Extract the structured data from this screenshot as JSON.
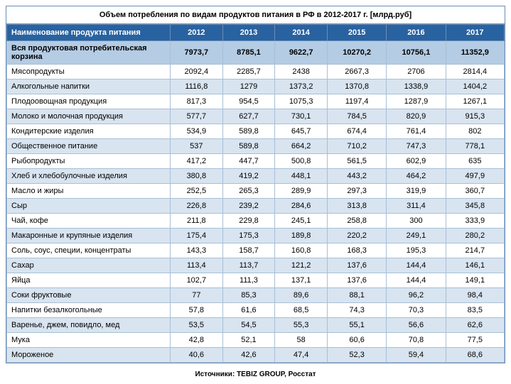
{
  "title": "Объем потребления по видам продуктов питания в РФ в 2012-2017 г. [млрд.руб]",
  "header": {
    "name": "Наименование продукта питания",
    "years": [
      "2012",
      "2013",
      "2014",
      "2015",
      "2016",
      "2017"
    ]
  },
  "totalRow": {
    "label": "Вся продуктовая потребительская корзина",
    "values": [
      "7973,7",
      "8785,1",
      "9622,7",
      "10270,2",
      "10756,1",
      "11352,9"
    ]
  },
  "rows": [
    {
      "label": "Мясопродукты",
      "values": [
        "2092,4",
        "2285,7",
        "2438",
        "2667,3",
        "2706",
        "2814,4"
      ]
    },
    {
      "label": "Алкогольные напитки",
      "values": [
        "1116,8",
        "1279",
        "1373,2",
        "1370,8",
        "1338,9",
        "1404,2"
      ]
    },
    {
      "label": "Плодоовощная продукция",
      "values": [
        "817,3",
        "954,5",
        "1075,3",
        "1197,4",
        "1287,9",
        "1267,1"
      ]
    },
    {
      "label": "Молоко и молочная продукция",
      "values": [
        "577,7",
        "627,7",
        "730,1",
        "784,5",
        "820,9",
        "915,3"
      ]
    },
    {
      "label": "Кондитерские изделия",
      "values": [
        "534,9",
        "589,8",
        "645,7",
        "674,4",
        "761,4",
        "802"
      ]
    },
    {
      "label": "Общественное питание",
      "values": [
        "537",
        "589,8",
        "664,2",
        "710,2",
        "747,3",
        "778,1"
      ]
    },
    {
      "label": "Рыбопродукты",
      "values": [
        "417,2",
        "447,7",
        "500,8",
        "561,5",
        "602,9",
        "635"
      ]
    },
    {
      "label": "Хлеб и хлебобулочные изделия",
      "values": [
        "380,8",
        "419,2",
        "448,1",
        "443,2",
        "464,2",
        "497,9"
      ]
    },
    {
      "label": "Масло и жиры",
      "values": [
        "252,5",
        "265,3",
        "289,9",
        "297,3",
        "319,9",
        "360,7"
      ]
    },
    {
      "label": "Сыр",
      "values": [
        "226,8",
        "239,2",
        "284,6",
        "313,8",
        "311,4",
        "345,8"
      ]
    },
    {
      "label": "Чай, кофе",
      "values": [
        "211,8",
        "229,8",
        "245,1",
        "258,8",
        "300",
        "333,9"
      ]
    },
    {
      "label": "Макаронные и крупяные изделия",
      "values": [
        "175,4",
        "175,3",
        "189,8",
        "220,2",
        "249,1",
        "280,2"
      ]
    },
    {
      "label": "Соль, соус, специи, концентраты",
      "values": [
        "143,3",
        "158,7",
        "160,8",
        "168,3",
        "195,3",
        "214,7"
      ]
    },
    {
      "label": "Сахар",
      "values": [
        "113,4",
        "113,7",
        "121,2",
        "137,6",
        "144,4",
        "146,1"
      ]
    },
    {
      "label": "Яйца",
      "values": [
        "102,7",
        "111,3",
        "137,1",
        "137,6",
        "144,4",
        "149,1"
      ]
    },
    {
      "label": "Соки фруктовые",
      "values": [
        "77",
        "85,3",
        "89,6",
        "88,1",
        "96,2",
        "98,4"
      ]
    },
    {
      "label": "Напитки безалкогольные",
      "values": [
        "57,8",
        "61,6",
        "68,5",
        "74,3",
        "70,3",
        "83,5"
      ]
    },
    {
      "label": "Варенье, джем, повидло, мед",
      "values": [
        "53,5",
        "54,5",
        "55,3",
        "55,1",
        "56,6",
        "62,6"
      ]
    },
    {
      "label": "Мука",
      "values": [
        "42,8",
        "52,1",
        "58",
        "60,6",
        "70,8",
        "77,5"
      ]
    },
    {
      "label": "Мороженое",
      "values": [
        "40,6",
        "42,6",
        "47,4",
        "52,3",
        "59,4",
        "68,6"
      ]
    }
  ],
  "source": "Источники: TEBIZ GROUP, Росстат",
  "style": {
    "header_bg": "#2862a0",
    "header_fg": "#ffffff",
    "total_bg": "#b4cce4",
    "row_odd_bg": "#d8e4f0",
    "row_even_bg": "#ffffff",
    "border_color": "#6b8db5",
    "cell_border": "#a8bfd6",
    "font_size_body": 11,
    "font_size_title": 11,
    "font_size_source": 10
  }
}
